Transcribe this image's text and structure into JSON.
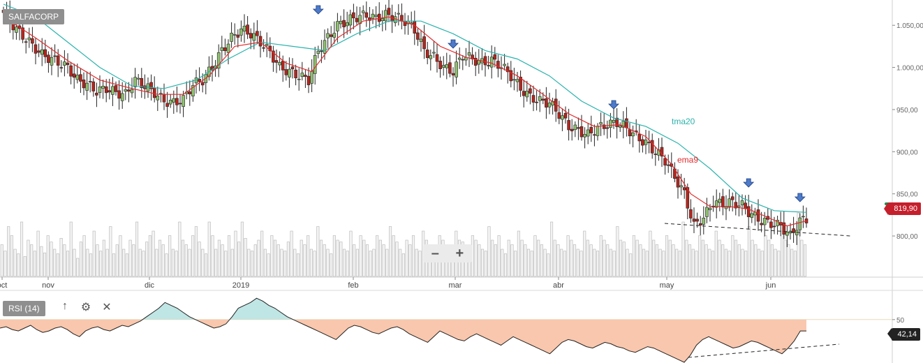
{
  "ticker": "SALFACORP",
  "zoom": {
    "minus": "–",
    "plus": "+"
  },
  "rsi_panel": {
    "label": "RSI (14)",
    "up_icon": "↑",
    "settings_icon": "⚙",
    "close_icon": "✕",
    "value_label": "42,14"
  },
  "last_price_label": "819,90",
  "colors": {
    "up": "#8fbf6f",
    "down": "#b5261e",
    "ema": "#e22b2b",
    "tma": "#29b3ad",
    "rsi_over": "#bfe6e4",
    "rsi_under": "#f9c7ad",
    "axis": "#666666",
    "marker": "#4d7ac9"
  },
  "chart_data": {
    "type": "candlestick",
    "x_labels": [
      "oct",
      "nov",
      "dic",
      "2019",
      "feb",
      "mar",
      "abr",
      "may",
      "jun"
    ],
    "y_ticks": [
      "1.050,00",
      "1.000,00",
      "950,00",
      "900,00",
      "850,00",
      "800,00"
    ],
    "ylim": [
      752,
      1080
    ],
    "series_labels": [
      {
        "name": "tma20"
      },
      {
        "name": "ema9"
      }
    ],
    "close_points": [
      [
        0,
        1065
      ],
      [
        4,
        1045
      ],
      [
        8,
        1030
      ],
      [
        12,
        1015
      ],
      [
        16,
        1008
      ],
      [
        20,
        1000
      ],
      [
        23,
        985
      ],
      [
        26,
        980
      ],
      [
        29,
        972
      ],
      [
        32,
        975
      ],
      [
        35,
        970
      ],
      [
        38,
        968
      ],
      [
        41,
        985
      ],
      [
        44,
        978
      ],
      [
        47,
        970
      ],
      [
        50,
        960
      ],
      [
        53,
        958
      ],
      [
        56,
        962
      ],
      [
        59,
        980
      ],
      [
        62,
        985
      ],
      [
        65,
        1000
      ],
      [
        68,
        1020
      ],
      [
        71,
        1035
      ],
      [
        74,
        1045
      ],
      [
        77,
        1040
      ],
      [
        80,
        1030
      ],
      [
        83,
        1018
      ],
      [
        86,
        1000
      ],
      [
        89,
        995
      ],
      [
        92,
        990
      ],
      [
        95,
        985
      ],
      [
        98,
        1020
      ],
      [
        101,
        1035
      ],
      [
        104,
        1050
      ],
      [
        107,
        1055
      ],
      [
        110,
        1060
      ],
      [
        113,
        1062
      ],
      [
        116,
        1058
      ],
      [
        119,
        1062
      ],
      [
        122,
        1060
      ],
      [
        125,
        1055
      ],
      [
        128,
        1045
      ],
      [
        131,
        1020
      ],
      [
        134,
        1012
      ],
      [
        137,
        1000
      ],
      [
        140,
        995
      ],
      [
        143,
        1015
      ],
      [
        146,
        1010
      ],
      [
        149,
        1005
      ],
      [
        152,
        1008
      ],
      [
        155,
        1002
      ],
      [
        158,
        990
      ],
      [
        161,
        975
      ],
      [
        164,
        965
      ],
      [
        167,
        960
      ],
      [
        170,
        958
      ],
      [
        173,
        945
      ],
      [
        176,
        930
      ],
      [
        179,
        925
      ],
      [
        182,
        920
      ],
      [
        185,
        928
      ],
      [
        188,
        932
      ],
      [
        191,
        935
      ],
      [
        194,
        928
      ],
      [
        197,
        918
      ],
      [
        200,
        910
      ],
      [
        203,
        900
      ],
      [
        206,
        890
      ],
      [
        209,
        870
      ],
      [
        212,
        850
      ],
      [
        215,
        812
      ],
      [
        218,
        822
      ],
      [
        221,
        840
      ],
      [
        224,
        838
      ],
      [
        227,
        840
      ],
      [
        230,
        836
      ],
      [
        233,
        825
      ],
      [
        236,
        818
      ],
      [
        239,
        815
      ],
      [
        242,
        812
      ],
      [
        245,
        800
      ],
      [
        248,
        818
      ],
      [
        250,
        820
      ]
    ],
    "ema9_points": [
      [
        0,
        1060
      ],
      [
        10,
        1035
      ],
      [
        20,
        1008
      ],
      [
        30,
        985
      ],
      [
        40,
        975
      ],
      [
        48,
        968
      ],
      [
        56,
        968
      ],
      [
        64,
        990
      ],
      [
        72,
        1025
      ],
      [
        80,
        1030
      ],
      [
        88,
        1005
      ],
      [
        96,
        995
      ],
      [
        104,
        1035
      ],
      [
        112,
        1055
      ],
      [
        120,
        1060
      ],
      [
        128,
        1050
      ],
      [
        136,
        1025
      ],
      [
        144,
        1012
      ],
      [
        152,
        1005
      ],
      [
        160,
        990
      ],
      [
        168,
        968
      ],
      [
        176,
        945
      ],
      [
        184,
        930
      ],
      [
        192,
        932
      ],
      [
        200,
        918
      ],
      [
        208,
        885
      ],
      [
        214,
        850
      ],
      [
        220,
        835
      ],
      [
        226,
        835
      ],
      [
        232,
        832
      ],
      [
        238,
        822
      ],
      [
        244,
        812
      ],
      [
        250,
        818
      ]
    ],
    "tma20_points": [
      [
        0,
        1075
      ],
      [
        10,
        1060
      ],
      [
        20,
        1030
      ],
      [
        30,
        1000
      ],
      [
        40,
        978
      ],
      [
        50,
        975
      ],
      [
        60,
        985
      ],
      [
        70,
        1010
      ],
      [
        80,
        1030
      ],
      [
        90,
        1025
      ],
      [
        100,
        1020
      ],
      [
        110,
        1040
      ],
      [
        120,
        1055
      ],
      [
        130,
        1055
      ],
      [
        140,
        1040
      ],
      [
        150,
        1020
      ],
      [
        160,
        1010
      ],
      [
        170,
        990
      ],
      [
        180,
        960
      ],
      [
        190,
        940
      ],
      [
        200,
        930
      ],
      [
        210,
        910
      ],
      [
        220,
        880
      ],
      [
        230,
        845
      ],
      [
        240,
        830
      ],
      [
        250,
        828
      ]
    ],
    "markers": [
      98,
      140,
      190,
      232,
      248
    ],
    "volume": [
      35,
      28,
      55,
      45,
      30,
      25,
      60,
      22,
      40,
      35,
      28,
      50,
      33,
      26,
      45,
      38,
      30,
      25,
      42,
      35,
      28,
      60,
      30,
      20,
      38,
      45,
      30,
      25,
      50,
      35,
      28,
      40,
      30,
      55,
      25,
      35,
      45,
      30,
      25,
      40,
      35,
      60,
      30,
      28,
      38,
      45,
      50,
      30,
      40,
      35,
      25,
      45,
      30,
      28,
      60,
      40,
      35,
      30,
      45,
      55,
      38,
      30,
      25,
      60,
      45,
      30,
      40,
      35,
      28,
      45,
      30,
      50,
      38,
      60,
      42,
      30,
      28,
      35,
      40,
      50,
      30,
      25,
      45,
      40,
      35,
      30,
      28,
      38,
      50,
      30,
      25,
      40,
      35,
      45,
      30,
      28,
      55,
      40,
      35,
      30,
      25,
      45,
      40,
      38,
      30,
      28,
      50,
      35,
      30,
      45,
      40,
      35,
      28,
      30,
      45,
      40,
      35,
      30,
      55,
      45,
      38,
      30,
      25,
      40,
      35,
      45,
      30,
      28,
      50,
      40,
      35,
      30,
      28,
      45,
      40,
      35,
      30,
      25,
      50,
      40,
      38,
      30,
      28,
      45,
      40,
      35,
      30,
      28,
      55,
      40,
      35,
      45,
      30,
      25,
      40,
      35,
      28,
      50,
      40,
      35,
      30,
      28,
      45,
      40,
      35,
      30,
      25,
      60,
      40,
      35,
      30,
      28,
      45,
      40,
      35,
      30,
      28,
      50,
      40,
      35,
      30,
      28,
      45,
      40,
      35,
      30,
      28,
      55,
      40,
      38,
      30,
      25,
      45,
      40,
      35,
      30,
      28,
      50,
      40,
      35,
      30,
      28,
      45,
      40,
      35,
      30,
      28,
      60,
      40,
      35,
      30,
      28,
      45,
      40,
      35,
      30,
      28,
      50,
      40,
      35,
      30,
      28,
      45,
      40,
      35,
      30,
      28,
      55,
      40,
      35,
      30,
      28,
      45,
      40,
      35,
      30,
      28,
      50,
      40,
      35,
      30,
      28,
      70,
      40,
      35
    ],
    "rsi": [
      44,
      45,
      43,
      42,
      44,
      46,
      43,
      41,
      42,
      44,
      45,
      43,
      40,
      38,
      42,
      44,
      45,
      43,
      42,
      44,
      46,
      45,
      47,
      49,
      52,
      55,
      58,
      62,
      60,
      58,
      55,
      52,
      50,
      48,
      46,
      44,
      45,
      47,
      52,
      58,
      60,
      62,
      65,
      63,
      60,
      58,
      55,
      52,
      50,
      48,
      46,
      44,
      42,
      40,
      38,
      36,
      40,
      44,
      46,
      45,
      43,
      41,
      40,
      42,
      44,
      45,
      43,
      40,
      38,
      36,
      34,
      38,
      42,
      40,
      38,
      36,
      35,
      38,
      40,
      38,
      36,
      34,
      32,
      35,
      38,
      36,
      34,
      32,
      30,
      28,
      26,
      30,
      34,
      36,
      35,
      33,
      31,
      30,
      32,
      34,
      33,
      31,
      30,
      28,
      27,
      29,
      31,
      30,
      28,
      26,
      24,
      22,
      20,
      25,
      32,
      36,
      38,
      36,
      34,
      32,
      30,
      31,
      33,
      35,
      34,
      32,
      30,
      28,
      26,
      30,
      35,
      42,
      42
    ],
    "rsi_level": 50
  }
}
